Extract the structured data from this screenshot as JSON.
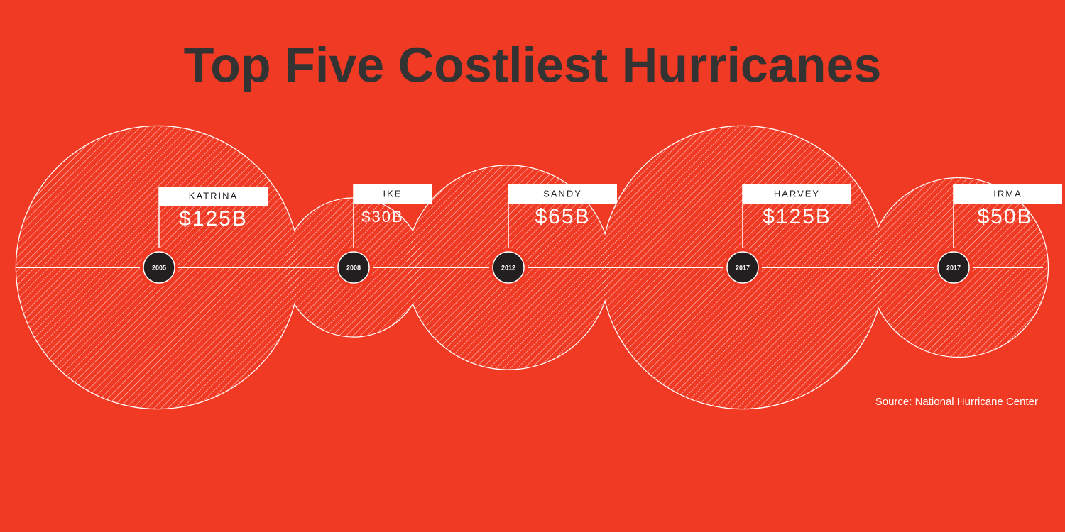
{
  "chart_data": {
    "type": "bubble-timeline",
    "title": "Top Five Costliest Hurricanes",
    "categories": [
      "KATRINA",
      "IKE",
      "SANDY",
      "HARVEY",
      "IRMA"
    ],
    "years": [
      "2005",
      "2008",
      "2012",
      "2017",
      "2017"
    ],
    "values": [
      125,
      30,
      65,
      125,
      50
    ],
    "value_labels": [
      "$125B",
      "$30B",
      "$65B",
      "$125B",
      "$50B"
    ],
    "source": "Source: National Hurricane Center",
    "color": "#f03a24"
  }
}
